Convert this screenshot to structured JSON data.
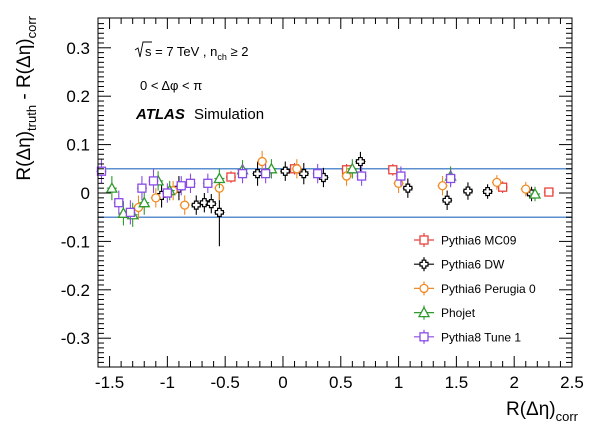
{
  "chart_data": {
    "type": "scatter",
    "title": "",
    "xlabel": {
      "main": "R(Δη)",
      "sub": "corr"
    },
    "ylabel": {
      "p1": "R(Δη)",
      "s1": "truth",
      "p2": " - R(Δη)",
      "s2": "corr"
    },
    "xlim": [
      -1.6,
      2.5
    ],
    "ylim": [
      -0.35,
      0.35
    ],
    "xticks": [
      {
        "v": -1.5,
        "label": "-1.5"
      },
      {
        "v": -1,
        "label": "-1"
      },
      {
        "v": -0.5,
        "label": "-0.5"
      },
      {
        "v": 0,
        "label": "0"
      },
      {
        "v": 0.5,
        "label": "0.5"
      },
      {
        "v": 1,
        "label": "1"
      },
      {
        "v": 1.5,
        "label": "1.5"
      },
      {
        "v": 2,
        "label": "2"
      },
      {
        "v": 2.5,
        "label": "2.5"
      }
    ],
    "yticks": [
      {
        "v": -0.3,
        "label": "-0.3"
      },
      {
        "v": -0.2,
        "label": "-0.2"
      },
      {
        "v": -0.1,
        "label": "-0.1"
      },
      {
        "v": 0,
        "label": "0"
      },
      {
        "v": 0.1,
        "label": "0.1"
      },
      {
        "v": 0.2,
        "label": "0.2"
      },
      {
        "v": 0.3,
        "label": "0.3"
      }
    ],
    "reference_lines": [
      0.05,
      -0.05
    ],
    "reference_color": "#5b8fd0",
    "annotations": {
      "energy": {
        "sqrt": "s",
        "mid": " = 7 TeV , n",
        "sub": "ch",
        "end": " ≥ 2"
      },
      "cut": "0 < Δφ < π",
      "atlas": "ATLAS",
      "simulation": "Simulation"
    },
    "legend_position": "bottom-right",
    "series": [
      {
        "name": "Pythia6 MC09",
        "marker": "square",
        "color": "#e8413c",
        "points": [
          [
            -0.45,
            0.033,
            0.012
          ],
          [
            0.1,
            0.05,
            0.012
          ],
          [
            0.55,
            0.048,
            0.012
          ],
          [
            0.95,
            0.048,
            0.012
          ],
          [
            1.9,
            0.012,
            0.012
          ],
          [
            2.3,
            0.002,
            0.008
          ]
        ]
      },
      {
        "name": "Pythia6 DW",
        "marker": "cross",
        "color": "#000000",
        "points": [
          [
            -1.05,
            -0.005,
            0.025
          ],
          [
            -0.9,
            0.01,
            0.025
          ],
          [
            -0.75,
            -0.025,
            0.02
          ],
          [
            -0.68,
            -0.02,
            0.02
          ],
          [
            -0.62,
            -0.022,
            0.02
          ],
          [
            -0.55,
            -0.04,
            0.07
          ],
          [
            -0.22,
            0.04,
            0.025
          ],
          [
            0.02,
            0.045,
            0.02
          ],
          [
            0.18,
            0.04,
            0.022
          ],
          [
            0.35,
            0.032,
            0.02
          ],
          [
            0.67,
            0.065,
            0.02
          ],
          [
            1.08,
            0.01,
            0.02
          ],
          [
            1.42,
            -0.015,
            0.02
          ],
          [
            1.6,
            0.004,
            0.018
          ],
          [
            1.77,
            0.003,
            0.015
          ],
          [
            2.15,
            -0.002,
            0.015
          ]
        ]
      },
      {
        "name": "Pythia6 Perugia 0",
        "marker": "circle",
        "color": "#f08a24",
        "points": [
          [
            -1.25,
            -0.03,
            0.025
          ],
          [
            -1.1,
            -0.01,
            0.02
          ],
          [
            -0.95,
            0.005,
            0.02
          ],
          [
            -0.85,
            -0.025,
            0.02
          ],
          [
            -0.55,
            0.01,
            0.025
          ],
          [
            -0.18,
            0.065,
            0.022
          ],
          [
            0.12,
            0.05,
            0.02
          ],
          [
            0.55,
            0.035,
            0.02
          ],
          [
            1.0,
            0.02,
            0.02
          ],
          [
            1.38,
            0.015,
            0.02
          ],
          [
            1.85,
            0.022,
            0.015
          ],
          [
            2.1,
            0.008,
            0.015
          ]
        ]
      },
      {
        "name": "Phojet",
        "marker": "triangle",
        "color": "#2e9a2e",
        "points": [
          [
            -1.48,
            0.01,
            0.025
          ],
          [
            -1.38,
            -0.042,
            0.025
          ],
          [
            -1.3,
            -0.045,
            0.025
          ],
          [
            -1.2,
            -0.02,
            0.025
          ],
          [
            -1.08,
            0.025,
            0.02
          ],
          [
            -0.98,
            0.005,
            0.02
          ],
          [
            -0.55,
            0.03,
            0.02
          ],
          [
            -0.35,
            0.048,
            0.02
          ],
          [
            -0.1,
            0.05,
            0.02
          ],
          [
            0.6,
            0.05,
            0.02
          ],
          [
            1.45,
            0.035,
            0.02
          ],
          [
            2.18,
            -0.002,
            0.015
          ]
        ]
      },
      {
        "name": "Pythia8 Tune 1",
        "marker": "square",
        "color": "#8a4ce6",
        "points": [
          [
            -1.57,
            0.045,
            0.025
          ],
          [
            -1.42,
            -0.02,
            0.025
          ],
          [
            -1.32,
            -0.04,
            0.025
          ],
          [
            -1.22,
            0.01,
            0.025
          ],
          [
            -1.12,
            0.025,
            0.025
          ],
          [
            -1.0,
            0.0,
            0.02
          ],
          [
            -0.88,
            0.015,
            0.02
          ],
          [
            -0.8,
            0.02,
            0.02
          ],
          [
            -0.65,
            0.02,
            0.02
          ],
          [
            -0.35,
            0.04,
            0.02
          ],
          [
            -0.15,
            0.04,
            0.02
          ],
          [
            0.3,
            0.04,
            0.02
          ],
          [
            0.68,
            0.035,
            0.02
          ],
          [
            1.02,
            0.035,
            0.02
          ],
          [
            1.45,
            0.03,
            0.018
          ]
        ]
      }
    ]
  }
}
